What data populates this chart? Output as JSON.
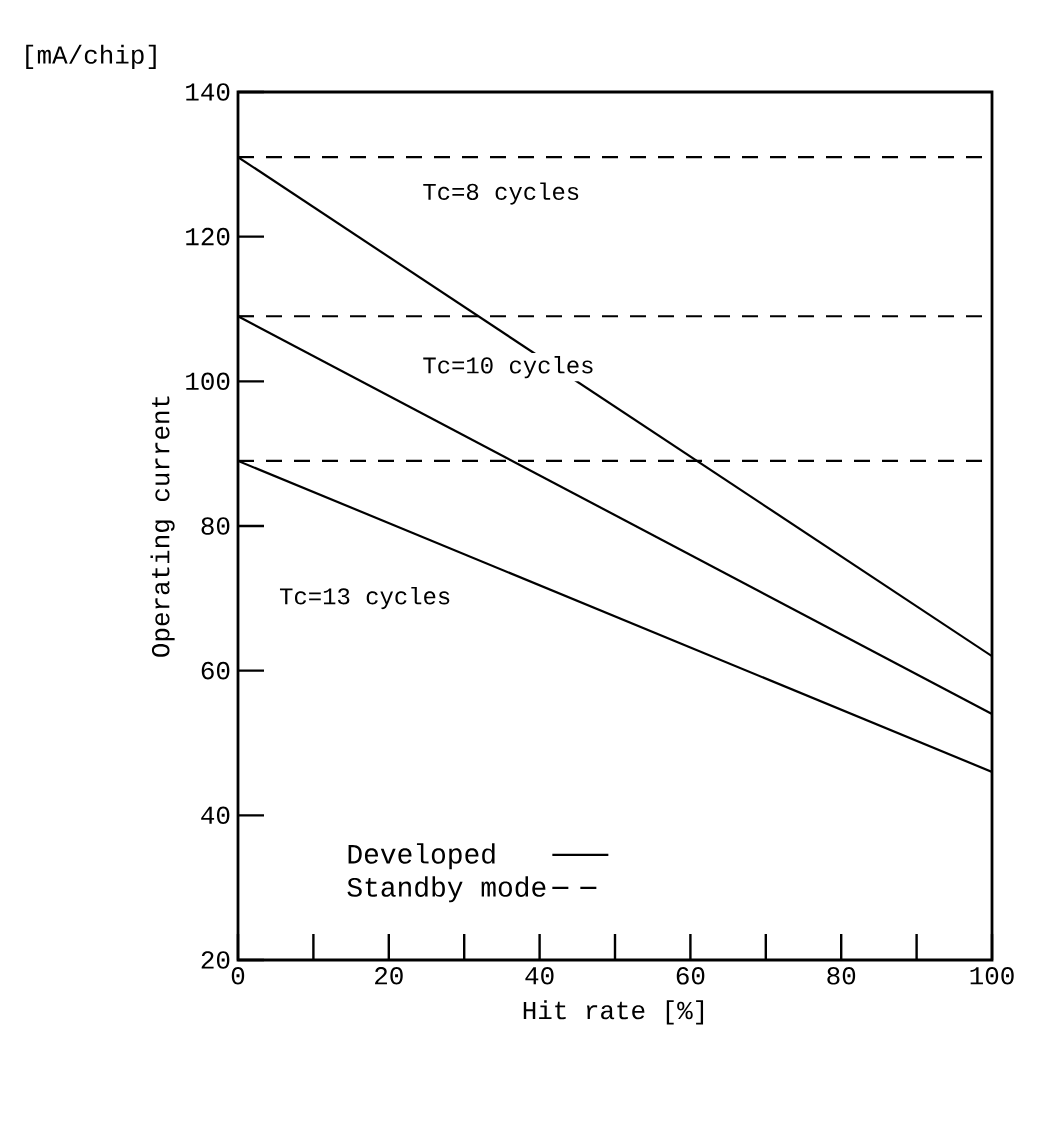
{
  "chart_data": {
    "type": "line",
    "xlabel": "Hit rate [%]",
    "ylabel": "Operating current",
    "x": [
      0,
      100
    ],
    "series": [
      {
        "name": "Developed",
        "color": "#000000",
        "line_style": "solid",
        "values": [
          131,
          62
        ]
      },
      {
        "color": "#000000",
        "line_style": "solid",
        "values": [
          109,
          54
        ]
      },
      {
        "color": "#000000",
        "line_style": "solid",
        "values": [
          89,
          46
        ]
      },
      {
        "name": "Standby mode",
        "color": "#000000",
        "line_style": "dashed",
        "values": [
          131,
          131
        ]
      },
      {
        "color": "#000000",
        "line_style": "dashed",
        "values": [
          109,
          109
        ]
      },
      {
        "color": "#000000",
        "line_style": "dashed",
        "values": [
          89,
          89
        ]
      }
    ],
    "xlim": [
      0,
      100
    ],
    "ylim": [
      20,
      140
    ],
    "xticks": [
      0,
      {
        "value": 10,
        "label": null
      },
      20,
      {
        "value": 30,
        "label": null
      },
      40,
      {
        "value": 50,
        "label": null
      },
      60,
      {
        "value": 70,
        "label": null
      },
      80,
      {
        "value": 90,
        "label": null
      },
      100
    ],
    "yticks": [
      20,
      40,
      60,
      80,
      100,
      120,
      140
    ],
    "annotations": [
      "[mA/chip]",
      "Tc=8 cycles",
      "Tc=10 cycles",
      "Tc=13 cycles"
    ],
    "grid": false,
    "legend": "bottom left"
  }
}
